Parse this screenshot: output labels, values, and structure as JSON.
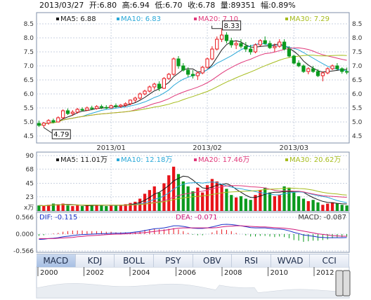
{
  "header": {
    "date": "2013/03/27",
    "open_label": "开:",
    "open": "6.80",
    "high_label": "高:",
    "high": "6.94",
    "low_label": "低:",
    "low": "6.70",
    "close_label": "收:",
    "close": "6.78",
    "volume_label": "量:",
    "volume": "89351",
    "change_label": "幅:",
    "change": "0.89%"
  },
  "price_panel": {
    "ma_labels": [
      {
        "text": "MA5: 6.88",
        "color": "#1a1a1a"
      },
      {
        "text": "MA10: 6.83",
        "color": "#29a8d8"
      },
      {
        "text": "MA20: 7.10",
        "color": "#e0387a"
      },
      {
        "text": "MA30: 7.29",
        "color": "#a6bc1c"
      }
    ],
    "y_ticks": [
      "8.5",
      "8.0",
      "7.5",
      "7.0",
      "6.5",
      "6.0",
      "5.5",
      "5.0",
      "4.5"
    ],
    "max_annotation": "8.33",
    "min_annotation": "4.79",
    "x_ticks": [
      "2013/01",
      "2013/02",
      "2013/03"
    ]
  },
  "volume_panel": {
    "ma_labels": [
      {
        "text": "MA5: 11.01万",
        "color": "#1a1a1a"
      },
      {
        "text": "MA10: 12.18万",
        "color": "#29a8d8"
      },
      {
        "text": "MA20: 17.46万",
        "color": "#e0387a"
      },
      {
        "text": "MA30: 20.62万",
        "color": "#a6bc1c"
      }
    ],
    "y_ticks": [
      "90",
      "68",
      "45",
      "23"
    ],
    "unit": "x万"
  },
  "macd_panel": {
    "dif_label": "DIF: -0.115",
    "dea_label": "DEA: -0.071",
    "macd_label": "MACD: -0.087",
    "y_ticks": [
      "0.566",
      "0.000",
      "-0.566"
    ]
  },
  "tabs": [
    "MACD",
    "KDJ",
    "BOLL",
    "PSY",
    "OBV",
    "RSI",
    "WVAD",
    "CCI"
  ],
  "active_tab": "MACD",
  "overview_years": [
    "2000",
    "2002",
    "2004",
    "2006",
    "2008",
    "2010",
    "2012"
  ],
  "colors": {
    "up": "#e8141a",
    "down": "#0b9a1e",
    "dif": "#1830c8",
    "dea": "#d0187a"
  },
  "chart_data": [
    {
      "type": "candlestick",
      "title": "",
      "ylim": [
        4.5,
        8.5
      ],
      "x_ticks": [
        "2013/01",
        "2013/02",
        "2013/03"
      ],
      "ohlc": [
        [
          4.95,
          5.05,
          4.82,
          4.88
        ],
        [
          4.88,
          5.0,
          4.8,
          4.96
        ],
        [
          4.96,
          5.1,
          4.9,
          5.05
        ],
        [
          5.05,
          5.12,
          4.95,
          5.0
        ],
        [
          5.0,
          5.2,
          4.98,
          5.15
        ],
        [
          5.15,
          5.45,
          5.1,
          5.4
        ],
        [
          5.4,
          5.48,
          5.25,
          5.3
        ],
        [
          5.3,
          5.42,
          5.22,
          5.35
        ],
        [
          5.35,
          5.5,
          5.3,
          5.45
        ],
        [
          5.45,
          5.52,
          5.38,
          5.42
        ],
        [
          5.42,
          5.55,
          5.4,
          5.5
        ],
        [
          5.5,
          5.58,
          5.42,
          5.48
        ],
        [
          5.48,
          5.6,
          5.44,
          5.55
        ],
        [
          5.55,
          5.62,
          5.46,
          5.52
        ],
        [
          5.52,
          5.6,
          5.46,
          5.5
        ],
        [
          5.5,
          5.62,
          5.48,
          5.58
        ],
        [
          5.58,
          5.66,
          5.5,
          5.56
        ],
        [
          5.56,
          5.64,
          5.5,
          5.6
        ],
        [
          5.6,
          5.7,
          5.54,
          5.65
        ],
        [
          5.65,
          5.8,
          5.6,
          5.78
        ],
        [
          5.78,
          5.9,
          5.7,
          5.85
        ],
        [
          5.85,
          6.05,
          5.8,
          6.0
        ],
        [
          6.0,
          6.15,
          5.95,
          6.1
        ],
        [
          6.1,
          6.3,
          6.05,
          6.25
        ],
        [
          6.25,
          6.4,
          6.15,
          6.35
        ],
        [
          6.35,
          6.45,
          6.1,
          6.2
        ],
        [
          6.2,
          6.6,
          6.18,
          6.55
        ],
        [
          6.55,
          6.75,
          6.5,
          6.7
        ],
        [
          6.7,
          7.3,
          6.65,
          7.25
        ],
        [
          7.25,
          7.35,
          6.9,
          7.0
        ],
        [
          7.0,
          7.1,
          6.8,
          6.85
        ],
        [
          6.85,
          6.95,
          6.6,
          6.7
        ],
        [
          6.7,
          6.85,
          6.55,
          6.65
        ],
        [
          6.65,
          6.8,
          6.5,
          6.75
        ],
        [
          6.75,
          7.0,
          6.7,
          6.95
        ],
        [
          6.95,
          7.3,
          6.9,
          7.25
        ],
        [
          7.25,
          7.7,
          7.2,
          7.6
        ],
        [
          7.6,
          8.05,
          7.55,
          7.95
        ],
        [
          7.95,
          8.33,
          7.85,
          8.1
        ],
        [
          8.1,
          8.2,
          7.8,
          7.9
        ],
        [
          7.9,
          8.0,
          7.65,
          7.75
        ],
        [
          7.75,
          7.9,
          7.6,
          7.8
        ],
        [
          7.8,
          7.95,
          7.62,
          7.7
        ],
        [
          7.7,
          7.85,
          7.5,
          7.6
        ],
        [
          7.6,
          7.75,
          7.4,
          7.5
        ],
        [
          7.5,
          7.8,
          7.45,
          7.75
        ],
        [
          7.75,
          7.95,
          7.7,
          7.9
        ],
        [
          7.9,
          8.05,
          7.75,
          7.8
        ],
        [
          7.8,
          7.9,
          7.6,
          7.65
        ],
        [
          7.65,
          7.8,
          7.5,
          7.7
        ],
        [
          7.7,
          7.95,
          7.65,
          7.85
        ],
        [
          7.85,
          7.95,
          7.55,
          7.6
        ],
        [
          7.6,
          7.7,
          7.3,
          7.35
        ],
        [
          7.35,
          7.4,
          7.05,
          7.1
        ],
        [
          7.1,
          7.2,
          6.95,
          7.0
        ],
        [
          7.0,
          7.05,
          6.75,
          6.8
        ],
        [
          6.8,
          6.95,
          6.7,
          6.9
        ],
        [
          6.9,
          7.0,
          6.75,
          6.8
        ],
        [
          6.8,
          6.88,
          6.6,
          6.65
        ],
        [
          6.65,
          6.8,
          6.45,
          6.75
        ],
        [
          6.75,
          6.95,
          6.7,
          6.9
        ],
        [
          6.9,
          7.05,
          6.85,
          7.0
        ],
        [
          7.0,
          7.1,
          6.85,
          6.9
        ],
        [
          6.9,
          6.95,
          6.72,
          6.8
        ],
        [
          6.8,
          6.94,
          6.7,
          6.78
        ]
      ],
      "ma_periods": [
        5,
        10,
        20,
        30
      ]
    },
    {
      "type": "bar",
      "title": "",
      "ylim": [
        0,
        90
      ],
      "ylabel": "x万",
      "values": [
        9,
        8,
        10,
        12,
        11,
        12,
        9,
        8,
        9,
        8,
        10,
        9,
        10,
        9,
        8,
        10,
        9,
        10,
        11,
        13,
        15,
        20,
        28,
        34,
        40,
        30,
        45,
        58,
        72,
        60,
        48,
        40,
        32,
        38,
        30,
        42,
        52,
        48,
        44,
        36,
        26,
        22,
        24,
        20,
        18,
        26,
        34,
        38,
        30,
        24,
        26,
        40,
        38,
        30,
        24,
        20,
        16,
        18,
        14,
        10,
        12,
        14,
        12,
        10,
        9
      ]
    },
    {
      "type": "line",
      "title": "",
      "ylim": [
        -0.566,
        0.566
      ],
      "series": [
        {
          "name": "DIF",
          "values": [
            -0.18,
            -0.17,
            -0.15,
            -0.14,
            -0.12,
            -0.09,
            -0.07,
            -0.05,
            -0.03,
            -0.02,
            -0.01,
            0.0,
            0.01,
            0.02,
            0.02,
            0.03,
            0.03,
            0.03,
            0.04,
            0.05,
            0.07,
            0.09,
            0.12,
            0.15,
            0.18,
            0.19,
            0.21,
            0.24,
            0.28,
            0.28,
            0.26,
            0.23,
            0.2,
            0.19,
            0.19,
            0.21,
            0.24,
            0.28,
            0.32,
            0.33,
            0.32,
            0.3,
            0.28,
            0.25,
            0.22,
            0.21,
            0.21,
            0.21,
            0.19,
            0.17,
            0.17,
            0.15,
            0.11,
            0.06,
            0.02,
            -0.03,
            -0.05,
            -0.07,
            -0.1,
            -0.11,
            -0.12,
            -0.12,
            -0.12,
            -0.12,
            -0.115
          ]
        },
        {
          "name": "DEA",
          "values": [
            -0.15,
            -0.15,
            -0.15,
            -0.15,
            -0.14,
            -0.13,
            -0.12,
            -0.11,
            -0.09,
            -0.08,
            -0.06,
            -0.05,
            -0.04,
            -0.03,
            -0.02,
            -0.01,
            0.0,
            0.0,
            0.01,
            0.02,
            0.03,
            0.04,
            0.05,
            0.07,
            0.09,
            0.11,
            0.13,
            0.15,
            0.18,
            0.2,
            0.21,
            0.21,
            0.21,
            0.21,
            0.21,
            0.21,
            0.21,
            0.22,
            0.24,
            0.26,
            0.27,
            0.28,
            0.28,
            0.27,
            0.26,
            0.25,
            0.24,
            0.24,
            0.23,
            0.22,
            0.21,
            0.2,
            0.18,
            0.16,
            0.13,
            0.1,
            0.07,
            0.04,
            0.01,
            -0.01,
            -0.03,
            -0.05,
            -0.06,
            -0.07,
            -0.071
          ]
        }
      ]
    }
  ]
}
